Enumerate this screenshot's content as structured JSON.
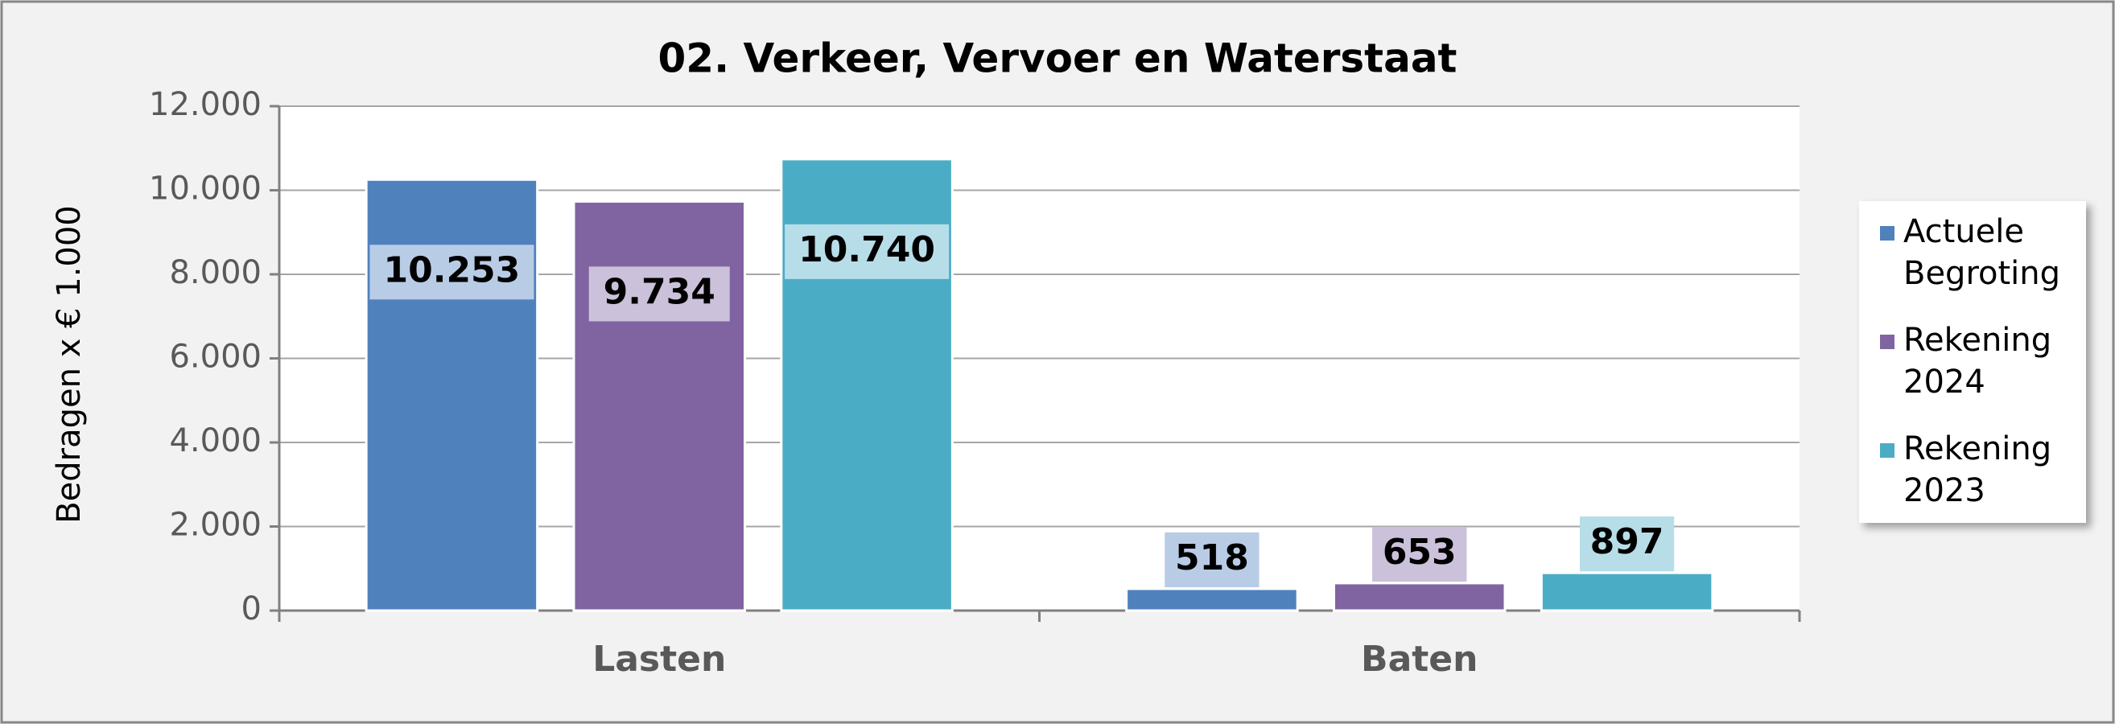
{
  "chart_data": {
    "type": "bar",
    "title": "02. Verkeer, Vervoer en Waterstaat",
    "y_label": "Bedragen x € 1.000",
    "categories": [
      "Lasten",
      "Baten"
    ],
    "series": [
      {
        "name": "Actuele Begroting",
        "color": "#4f81bd",
        "values": [
          10253,
          518
        ],
        "value_labels": [
          "10.253",
          "518"
        ]
      },
      {
        "name": "Rekening 2024",
        "color": "#8064a2",
        "values": [
          9734,
          653
        ],
        "value_labels": [
          "9.734",
          "653"
        ]
      },
      {
        "name": "Rekening 2023",
        "color": "#4bacc6",
        "values": [
          10740,
          897
        ],
        "value_labels": [
          "10.740",
          "897"
        ]
      }
    ],
    "ylim": [
      0,
      12000
    ],
    "yticks": [
      0,
      {
        "value": 2000,
        "label": "2.000"
      },
      {
        "value": 4000,
        "label": "4.000"
      },
      {
        "value": 6000,
        "label": "6.000"
      },
      {
        "value": 8000,
        "label": "8.000"
      },
      {
        "value": 10000,
        "label": "10.000"
      },
      {
        "value": 12000,
        "label": "12.000"
      }
    ],
    "grid": true,
    "legend": "right"
  }
}
